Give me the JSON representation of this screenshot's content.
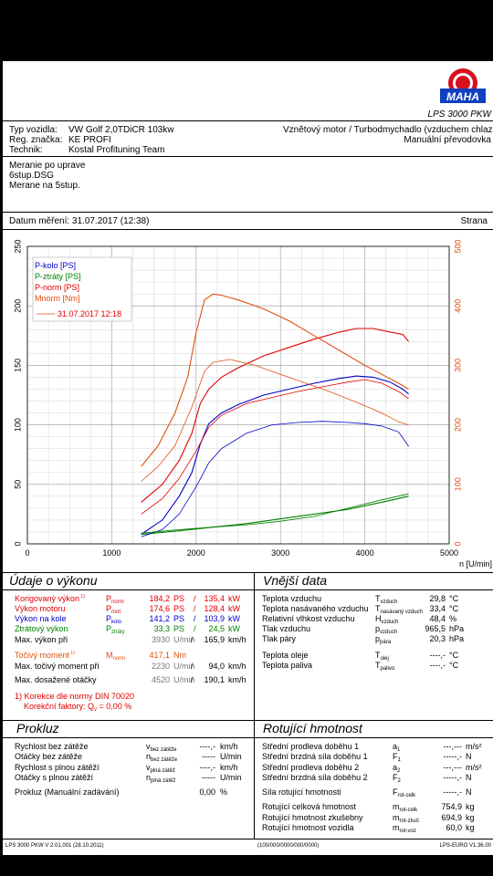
{
  "header": {
    "logo_text": "MAHA",
    "logo_ring_text": "Maschinenbau Haldenwang",
    "model": "LPS 3000 PKW",
    "vehicle_type_label": "Typ vozidla:",
    "vehicle_type": "VW Golf 2,0TDiCR 103kw",
    "reg_label": "Reg. značka:",
    "reg": "KE PROFI",
    "tech_label": "Technik:",
    "tech": "Kostal Profituning Team",
    "engine": "Vznětový motor / Turbodmychadlo (vzduchem chlazené)",
    "gearbox": "Manuální převodovka",
    "notes": [
      "Meranie po uprave",
      "6stup.DSG",
      "Merane na 5stup."
    ],
    "date_label": "Datum měření: 31.07.2017 (12:38)",
    "page_label": "Strana"
  },
  "chart_data": {
    "type": "line",
    "title": "",
    "xlabel": "n [U/min]",
    "xlim": [
      0,
      5000
    ],
    "ylim_left": [
      0,
      250
    ],
    "ylim_right": [
      0,
      500
    ],
    "x_ticks": [
      0,
      1000,
      2000,
      3000,
      4000,
      5000
    ],
    "y_left_ticks": [
      0,
      50,
      100,
      150,
      200,
      250
    ],
    "y_right_ticks": [
      0,
      100,
      200,
      300,
      400,
      500
    ],
    "grid": true,
    "legend_position": "top-left",
    "legend": [
      "P-kolo [PS]",
      "P-ztráty [PS]",
      "P-norm [PS]",
      "Mnorm [Nm]",
      "31.07.2017 12:18"
    ],
    "series": [
      {
        "name": "P-kolo [PS]",
        "color": "#0000c8",
        "axis": "left",
        "run": "current",
        "x": [
          1350,
          1600,
          1800,
          1950,
          2050,
          2150,
          2300,
          2500,
          2800,
          3100,
          3400,
          3700,
          3900,
          4100,
          4300,
          4450,
          4520
        ],
        "y": [
          8,
          20,
          40,
          60,
          84,
          101,
          110,
          117,
          125,
          130,
          135,
          139,
          141,
          140,
          136,
          130,
          126
        ]
      },
      {
        "name": "P-ztráty [PS]",
        "color": "#008000",
        "axis": "left",
        "run": "current",
        "x": [
          1350,
          1800,
          2200,
          2600,
          3000,
          3400,
          3800,
          4200,
          4520
        ],
        "y": [
          8,
          11,
          14,
          17,
          21,
          25,
          29,
          35,
          40
        ]
      },
      {
        "name": "P-norm [PS]",
        "color": "#e00000",
        "axis": "left",
        "run": "current",
        "x": [
          1350,
          1600,
          1800,
          1950,
          2050,
          2150,
          2300,
          2500,
          2800,
          3100,
          3400,
          3700,
          3900,
          4100,
          4300,
          4450,
          4520
        ],
        "y": [
          35,
          50,
          70,
          93,
          118,
          130,
          140,
          148,
          158,
          165,
          172,
          178,
          181,
          181,
          178,
          176,
          170
        ]
      },
      {
        "name": "Mnorm [Nm]",
        "color": "#e05010",
        "axis": "right",
        "run": "current",
        "x": [
          1350,
          1550,
          1750,
          1900,
          2000,
          2100,
          2200,
          2300,
          2500,
          2800,
          3100,
          3400,
          3700,
          4000,
          4200,
          4400,
          4520
        ],
        "y": [
          130,
          165,
          220,
          280,
          355,
          410,
          420,
          418,
          410,
          395,
          375,
          350,
          325,
          300,
          285,
          270,
          260
        ]
      },
      {
        "name": "P-kolo [PS]",
        "color": "#0000c8",
        "axis": "left",
        "run": "31.07.2017 12:18",
        "x": [
          1350,
          1600,
          1800,
          2000,
          2150,
          2300,
          2600,
          2900,
          3200,
          3500,
          3800,
          4000,
          4200,
          4400,
          4520
        ],
        "y": [
          6,
          12,
          25,
          48,
          68,
          80,
          93,
          100,
          102,
          103,
          102,
          101,
          99,
          94,
          82
        ]
      },
      {
        "name": "P-ztráty [PS]",
        "color": "#008000",
        "axis": "left",
        "run": "31.07.2017 12:18",
        "x": [
          1350,
          1800,
          2200,
          2600,
          3000,
          3400,
          3800,
          4200,
          4520
        ],
        "y": [
          9,
          12,
          14,
          16,
          19,
          23,
          30,
          37,
          42
        ]
      },
      {
        "name": "P-norm [PS]",
        "color": "#e00000",
        "axis": "left",
        "run": "31.07.2017 12:18",
        "x": [
          1350,
          1600,
          1800,
          2000,
          2150,
          2300,
          2600,
          2900,
          3200,
          3500,
          3800,
          4000,
          4200,
          4400,
          4520
        ],
        "y": [
          25,
          38,
          55,
          78,
          98,
          108,
          118,
          123,
          128,
          132,
          136,
          138,
          135,
          128,
          122
        ]
      },
      {
        "name": "Mnorm [Nm]",
        "color": "#e05010",
        "axis": "right",
        "run": "31.07.2017 12:18",
        "x": [
          1350,
          1550,
          1750,
          1950,
          2100,
          2200,
          2400,
          2700,
          3000,
          3300,
          3600,
          3900,
          4200,
          4400,
          4520
        ],
        "y": [
          105,
          130,
          165,
          230,
          290,
          305,
          310,
          300,
          285,
          270,
          255,
          238,
          220,
          205,
          200
        ]
      }
    ]
  },
  "vykon": {
    "title": "Údaje o výkonu",
    "rows": [
      {
        "label": "Korigovaný výkon",
        "sup": "1)",
        "sym": "P",
        "sub": "norm",
        "v1": "184,2",
        "u1": "PS",
        "sep": "/",
        "v2": "135,4",
        "u2": "kW"
      },
      {
        "label": "Výkon motoru",
        "sym": "P",
        "sub": "mot",
        "v1": "174,6",
        "u1": "PS",
        "sep": "/",
        "v2": "128,4",
        "u2": "kW"
      },
      {
        "label": "Výkon na kole",
        "sym": "P",
        "sub": "kolo",
        "v1": "141,2",
        "u1": "PS",
        "sep": "/",
        "v2": "103,9",
        "u2": "kW"
      },
      {
        "label": "Ztrátový výkon",
        "sym": "P",
        "sub": "ztráty",
        "v1": "33,3",
        "u1": "PS",
        "sep": "/",
        "v2": "24,5",
        "u2": "kW"
      },
      {
        "label": "Max. výkon při",
        "v1": "3930",
        "u1": "U/min",
        "sep": "/",
        "v2": "165,9",
        "u2": "km/h"
      },
      {
        "label": "Točivý moment",
        "sup": "1)",
        "sym": "M",
        "sub": "norm",
        "v1": "417,1",
        "u1": "Nm"
      },
      {
        "label": "Max. točivý moment při",
        "v1": "2230",
        "u1": "U/min",
        "sep": "/",
        "v2": "94,0",
        "u2": "km/h"
      },
      {
        "label": "Max. dosažené otáčky",
        "v1": "4520",
        "u1": "U/min",
        "sep": "/",
        "v2": "190,1",
        "u2": "km/h"
      }
    ],
    "note1": "1) Korekce dle normy DIN 70020",
    "note2": "Korekční faktory: Q",
    "note2_sub": "v",
    "note2_val": " =   0,00 %"
  },
  "vnejsi": {
    "title": "Vnější data",
    "rows": [
      {
        "label": "Teplota vzduchu",
        "sym": "T",
        "sub": "vzduch",
        "val": "29,8",
        "unit": "°C"
      },
      {
        "label": "Teplota nasávaného vzduchu",
        "sym": "T",
        "sub": "nasávaný vzduch",
        "val": "33,4",
        "unit": "°C"
      },
      {
        "label": "Relativní vlhkost vzduchu",
        "sym": "H",
        "sub": "vzduch",
        "val": "48,4",
        "unit": "%"
      },
      {
        "label": "Tlak vzduchu",
        "sym": "p",
        "sub": "vzduch",
        "val": "965,5",
        "unit": "hPa"
      },
      {
        "label": "Tlak páry",
        "sym": "p",
        "sub": "pára",
        "val": "20,3",
        "unit": "hPa"
      },
      {
        "label": "Teplota oleje",
        "sym": "T",
        "sub": "olej",
        "val": "----,-",
        "unit": "°C"
      },
      {
        "label": "Teplota paliva",
        "sym": "T",
        "sub": "palivo",
        "val": "----,-",
        "unit": "°C"
      }
    ]
  },
  "prokluz": {
    "title": "Prokluz",
    "rows": [
      {
        "label": "Rychlost bez zátěže",
        "sym": "v",
        "sub": "bez zátěže",
        "val": "----,-",
        "unit": "km/h"
      },
      {
        "label": "Otáčky bez zátěže",
        "sym": "n",
        "sub": "bez zátěže",
        "val": "-----",
        "unit": "U/min"
      },
      {
        "label": "Rychlost s plnou zátěží",
        "sym": "v",
        "sub": "plná zátěž",
        "val": "----,-",
        "unit": "km/h"
      },
      {
        "label": "Otáčky s plnou zátěží",
        "sym": "n",
        "sub": "plná zátěž",
        "val": "-----",
        "unit": "U/min"
      },
      {
        "label": "Prokluz (Manuální zadávání)",
        "val": "0,00",
        "unit": "%"
      }
    ]
  },
  "hmotnost": {
    "title": "Rotující hmotnost",
    "rows": [
      {
        "label": "Střední prodleva doběhu 1",
        "sym": "a",
        "sub": "1",
        "val": "---,---",
        "unit": "m/s²"
      },
      {
        "label": "Střední brzdná síla doběhu 1",
        "sym": "F",
        "sub": "1",
        "val": "-----,-",
        "unit": "N"
      },
      {
        "label": "Střední prodleva doběhu 2",
        "sym": "a",
        "sub": "2",
        "val": "---,---",
        "unit": "m/s²"
      },
      {
        "label": "Střední brzdná síla doběhu 2",
        "sym": "F",
        "sub": "2",
        "val": "-----,-",
        "unit": "N"
      },
      {
        "label": "Síla rotující hmotnosti",
        "sym": "F",
        "sub": "rot-celk",
        "val": "-----,-",
        "unit": "N"
      },
      {
        "label": "Rotující celková hmotnost",
        "sym": "m",
        "sub": "rot-celk",
        "val": "754,9",
        "unit": "kg"
      },
      {
        "label": "Rotující hmotnost zkušebny",
        "sym": "m",
        "sub": "rot-zkuš",
        "val": "694,9",
        "unit": "kg"
      },
      {
        "label": "Rotující hmotnost vozidla",
        "sym": "m",
        "sub": "rot-voz",
        "val": "60,0",
        "unit": "kg"
      }
    ]
  },
  "footer": {
    "left": "LPS 3000 PKW V 2.01.001 (28.10.2011)",
    "center": "(100/000/0000/000/0000)",
    "right": "LPS-EURO V1.36.00"
  }
}
